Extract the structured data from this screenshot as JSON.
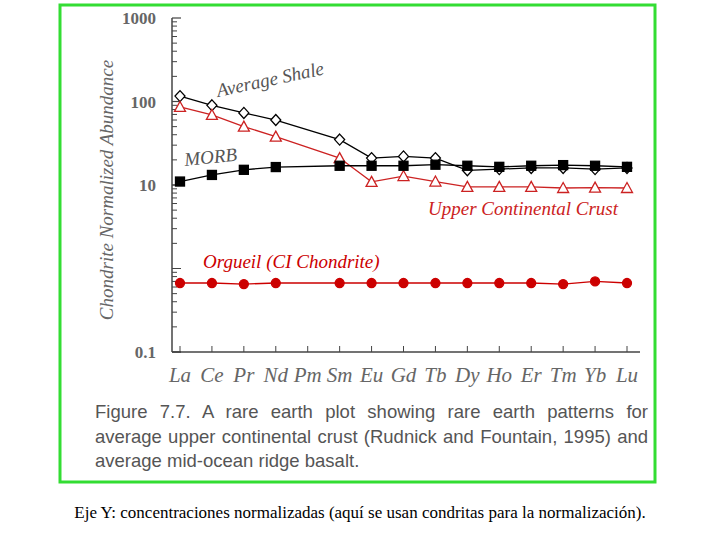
{
  "chart_data": {
    "type": "line",
    "title": "Figure 7.7.  A rare earth plot showing rare earth patterns for average upper continental crust (Rudnick and Fountain, 1995) and average mid-ocean ridge basalt.",
    "annotations": [
      "Eje Y: concentraciones normalizadas (aquí se usan condritas para la normalización)."
    ],
    "y_label": "Chondrite Normalized Abundance",
    "categories": [
      "La",
      "Ce",
      "Pr",
      "Nd",
      "Pm",
      "Sm",
      "Eu",
      "Gd",
      "Tb",
      "Dy",
      "Ho",
      "Er",
      "Tm",
      "Yb",
      "Lu"
    ],
    "log": "y",
    "ylim": [
      0.1,
      1000
    ],
    "yticks": [
      0.1,
      10,
      100,
      1000
    ],
    "series": [
      {
        "name": "Average Shale",
        "color": "#000000",
        "marker": "diamond",
        "values": [
          116,
          90,
          73,
          60,
          null,
          35,
          21,
          22,
          21,
          15,
          15.5,
          16,
          16,
          15.5,
          16
        ]
      },
      {
        "name": "Upper Continental Crust",
        "color": "#cc2222",
        "marker": "triangle",
        "values": [
          86,
          69,
          50,
          38,
          null,
          21,
          10.9,
          12.8,
          11,
          9.5,
          9.5,
          9.5,
          9.2,
          9.3,
          9.2
        ]
      },
      {
        "name": "MORB",
        "color": "#000000",
        "marker": "square",
        "values": [
          11,
          13.2,
          15.2,
          16.4,
          null,
          17,
          17,
          17,
          17.5,
          17,
          16.5,
          17,
          17.3,
          17,
          16.5
        ]
      },
      {
        "name": "Orgueil (CI Chondrite)",
        "color": "#cc0000",
        "marker": "circle",
        "values": [
          0.67,
          0.67,
          0.65,
          0.67,
          null,
          0.67,
          0.67,
          0.67,
          0.67,
          0.67,
          0.67,
          0.67,
          0.65,
          0.7,
          0.67
        ]
      }
    ]
  }
}
